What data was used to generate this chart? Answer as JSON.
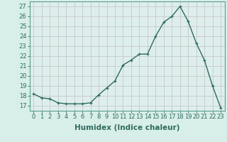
{
  "x": [
    0,
    1,
    2,
    3,
    4,
    5,
    6,
    7,
    8,
    9,
    10,
    11,
    12,
    13,
    14,
    15,
    16,
    17,
    18,
    19,
    20,
    21,
    22,
    23
  ],
  "y": [
    18.2,
    17.8,
    17.7,
    17.3,
    17.2,
    17.2,
    17.2,
    17.3,
    18.1,
    18.8,
    19.5,
    21.1,
    21.6,
    22.2,
    22.2,
    24.0,
    25.4,
    26.0,
    27.0,
    25.5,
    23.3,
    21.6,
    19.0,
    16.8
  ],
  "line_color": "#2e6b5e",
  "marker": "+",
  "marker_size": 3.5,
  "xlabel": "Humidex (Indice chaleur)",
  "xlim": [
    -0.5,
    23.5
  ],
  "ylim": [
    16.5,
    27.5
  ],
  "yticks": [
    17,
    18,
    19,
    20,
    21,
    22,
    23,
    24,
    25,
    26,
    27
  ],
  "xticks": [
    0,
    1,
    2,
    3,
    4,
    5,
    6,
    7,
    8,
    9,
    10,
    11,
    12,
    13,
    14,
    15,
    16,
    17,
    18,
    19,
    20,
    21,
    22,
    23
  ],
  "bg_color": "#d8eee9",
  "plot_bg_color": "#ddeeed",
  "grid_color": "#c8c8c8",
  "tick_color": "#2e6b5e",
  "label_color": "#2e6b5e",
  "spine_color": "#5a9e8e",
  "xlabel_fontsize": 7.5,
  "tick_fontsize": 6.0,
  "line_width": 1.0,
  "markeredgewidth": 0.9
}
